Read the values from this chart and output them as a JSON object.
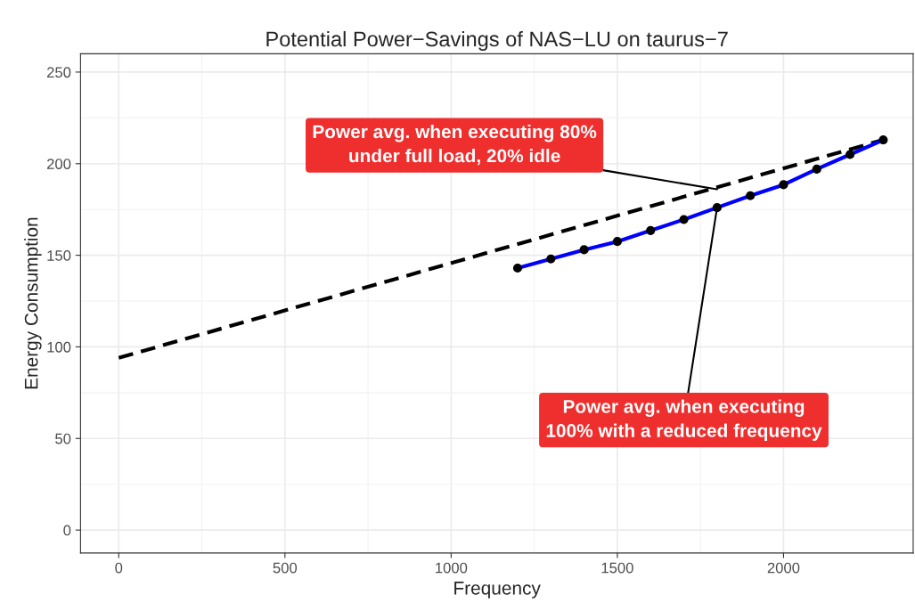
{
  "chart_data": {
    "type": "line",
    "title": "Potential Power−Savings of NAS−LU on taurus−7",
    "xlabel": "Frequency",
    "ylabel": "Energy Consumption",
    "series": [
      {
        "color": "#000000",
        "line_style": "dashed",
        "x": [
          0,
          2300
        ],
        "values": [
          94,
          213
        ]
      },
      {
        "color": "#0000ff",
        "line_style": "solid",
        "marker": "circle",
        "x": [
          1200,
          1300,
          1400,
          1500,
          1600,
          1700,
          1800,
          1900,
          2000,
          2100,
          2200,
          2300
        ],
        "values": [
          143,
          148,
          153,
          157.5,
          163.5,
          169.5,
          176,
          182.5,
          188.5,
          197,
          205,
          213
        ]
      }
    ],
    "annotations": [
      {
        "text": "Power avg. when executing 80%\nunder full load, 20% idle",
        "x": 1800,
        "y": 186
      },
      {
        "text": "Power avg. when executing\n100% with a reduced frequency",
        "x": 1800,
        "y": 176
      }
    ],
    "xlim": [
      -115,
      2390
    ],
    "ylim": [
      -12.5,
      260
    ],
    "xticks": [
      0,
      500,
      1000,
      1500,
      2000
    ],
    "yticks": [
      0,
      50,
      100,
      150,
      200,
      250
    ],
    "grid": true,
    "legend": false
  }
}
